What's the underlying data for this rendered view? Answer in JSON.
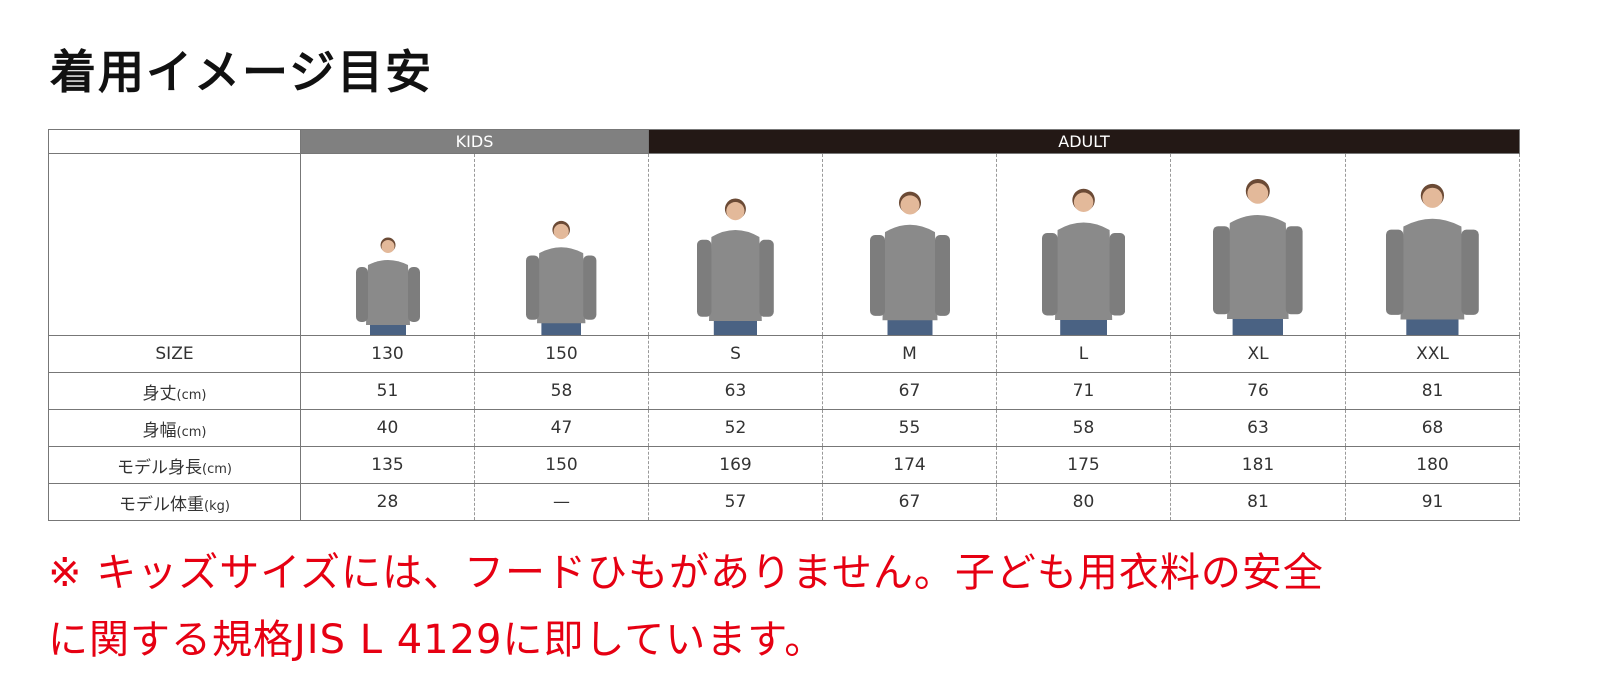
{
  "title": "着用イメージ目安",
  "groups": {
    "kids": "KIDS",
    "adult": "ADULT"
  },
  "colors": {
    "kids_header": "#808080",
    "adult_header": "#231815",
    "note": "#e60012",
    "hoodie": "#8a8a8a"
  },
  "sizes": [
    "130",
    "150",
    "S",
    "M",
    "L",
    "XL",
    "XXL"
  ],
  "rows": [
    {
      "label": "SIZE",
      "unit": "",
      "values": [
        "130",
        "150",
        "S",
        "M",
        "L",
        "XL",
        "XXL"
      ]
    },
    {
      "label": "身丈",
      "unit": "(cm)",
      "values": [
        "51",
        "58",
        "63",
        "67",
        "71",
        "76",
        "81"
      ]
    },
    {
      "label": "身幅",
      "unit": "(cm)",
      "values": [
        "40",
        "47",
        "52",
        "55",
        "58",
        "63",
        "68"
      ]
    },
    {
      "label": "モデル身長",
      "unit": "(cm)",
      "values": [
        "135",
        "150",
        "169",
        "174",
        "175",
        "181",
        "180"
      ]
    },
    {
      "label": "モデル体重",
      "unit": "(kg)",
      "values": [
        "28",
        "—",
        "57",
        "67",
        "80",
        "81",
        "91"
      ]
    }
  ],
  "note": {
    "line1": "※ キッズサイズには、フードひもがありません。子ども用衣料の安全",
    "line2": "に関する規格JIS L 4129に即しています。"
  }
}
